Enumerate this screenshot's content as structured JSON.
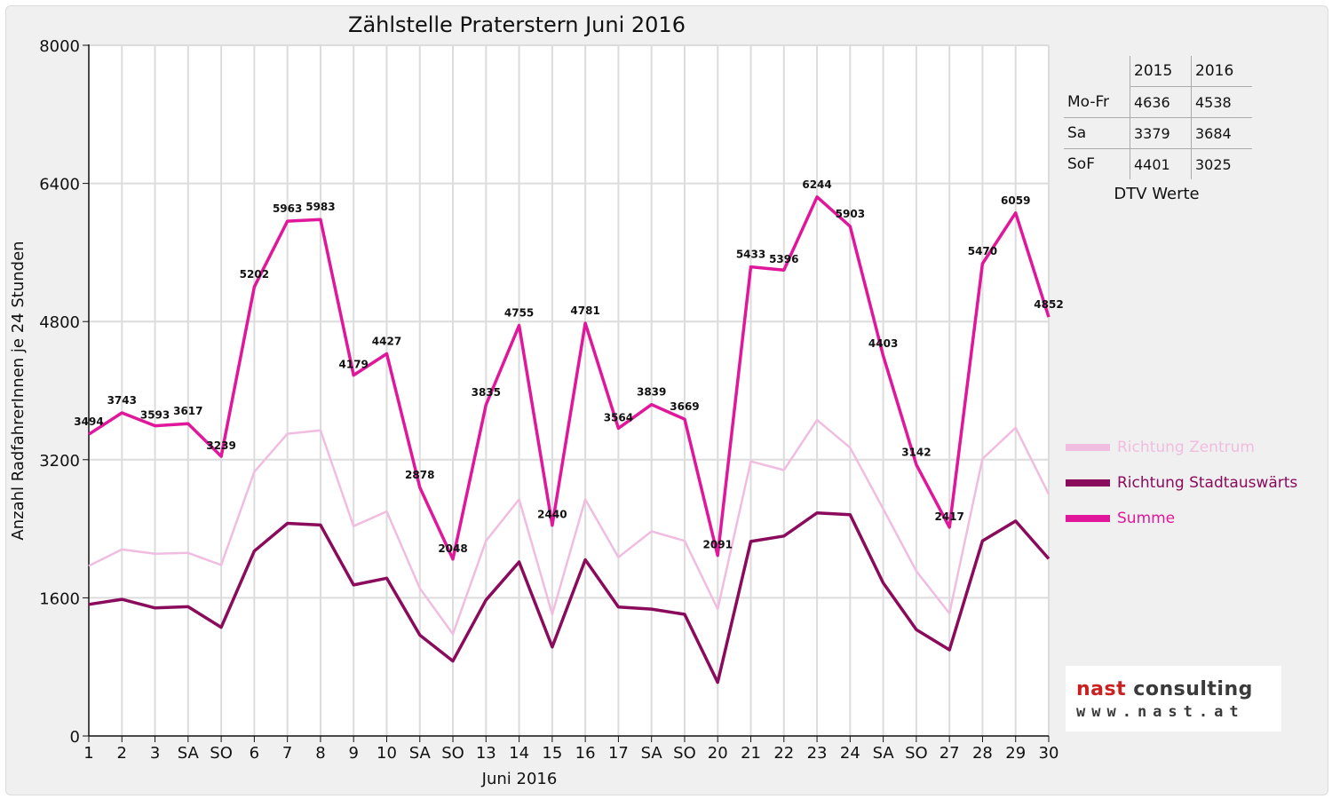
{
  "chart_data": {
    "type": "line",
    "title": "Zählstelle Praterstern Juni 2016",
    "xlabel": "Juni 2016",
    "ylabel": "Anzahl RadfahrerInnen je 24 Stunden",
    "ylim": [
      0,
      8000
    ],
    "yticks": [
      0,
      1600,
      3200,
      4800,
      6400,
      8000
    ],
    "categories": [
      "1",
      "2",
      "3",
      "SA",
      "SO",
      "6",
      "7",
      "8",
      "9",
      "10",
      "SA",
      "SO",
      "13",
      "14",
      "15",
      "16",
      "17",
      "SA",
      "SO",
      "20",
      "21",
      "22",
      "23",
      "24",
      "SA",
      "SO",
      "27",
      "28",
      "29",
      "30"
    ],
    "weekend_color": "#ff0000",
    "grid": true,
    "legend_position": "right",
    "series": [
      {
        "name": "Richtung Zentrum",
        "color": "#f0bde0",
        "values": [
          1970,
          2160,
          2110,
          2120,
          1980,
          3060,
          3500,
          3540,
          2430,
          2600,
          1710,
          1180,
          2260,
          2740,
          1410,
          2740,
          2070,
          2370,
          2260,
          1470,
          3180,
          3080,
          3660,
          3340,
          2630,
          1910,
          1420,
          3210,
          3570,
          2800
        ]
      },
      {
        "name": "Richtung Stadtauswärts",
        "color": "#8a0a5c",
        "values": [
          1524,
          1583,
          1483,
          1497,
          1259,
          2142,
          2463,
          2443,
          1749,
          1827,
          1168,
          868,
          1575,
          2015,
          1030,
          2041,
          1494,
          1469,
          1409,
          621,
          2253,
          2316,
          2584,
          2563,
          1773,
          1232,
          997,
          2260,
          2489,
          2052
        ]
      },
      {
        "name": "Summe",
        "color": "#e0179b",
        "values": [
          3494,
          3743,
          3593,
          3617,
          3239,
          5202,
          5963,
          5983,
          4179,
          4427,
          2878,
          2048,
          3835,
          4755,
          2440,
          4781,
          3564,
          3839,
          3669,
          2091,
          5433,
          5396,
          6244,
          5903,
          4403,
          3142,
          2417,
          5470,
          6059,
          4852
        ],
        "labels": [
          "3494",
          "3743",
          "3593",
          "3617",
          "3239",
          "5202",
          "5963",
          "5983",
          "4179",
          "4427",
          "2878",
          "2048",
          "3835",
          "4755",
          "2440",
          "4781",
          "3564",
          "3839",
          "3669",
          "2091",
          "5433",
          "5396",
          "6244",
          "5903",
          "4403",
          "3142",
          "2417",
          "5470",
          "6059",
          "4852"
        ]
      }
    ]
  },
  "dtv_table": {
    "headers": [
      "",
      "2015",
      "2016"
    ],
    "rows": [
      {
        "label": "Mo-Fr",
        "v2015": "4636",
        "v2016": "4538"
      },
      {
        "label": "Sa",
        "v2015": "3379",
        "v2016": "3684"
      },
      {
        "label": "SoF",
        "v2015": "4401",
        "v2016": "3025"
      }
    ],
    "caption": "DTV Werte"
  },
  "logo": {
    "name_part1": "nast",
    "name_part2": " consulting",
    "url": "www.nast.at"
  }
}
